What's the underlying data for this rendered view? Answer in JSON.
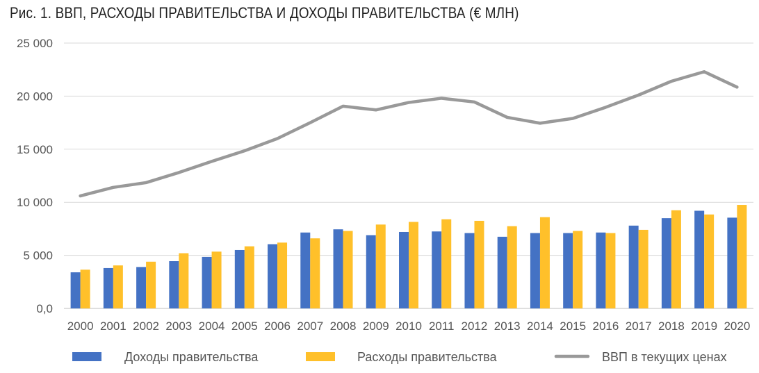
{
  "chart_data": {
    "type": "bar",
    "title": "Рис. 1. ВВП, РАСХОДЫ ПРАВИТЕЛЬСТВА И ДОХОДЫ ПРАВИТЕЛЬСТВА (€ МЛН)",
    "categories": [
      "2000",
      "2001",
      "2002",
      "2003",
      "2004",
      "2005",
      "2006",
      "2007",
      "2008",
      "2009",
      "2010",
      "2011",
      "2012",
      "2013",
      "2014",
      "2015",
      "2016",
      "2017",
      "2018",
      "2019",
      "2020"
    ],
    "y_ticks": [
      {
        "value": 0,
        "label": "0,0"
      },
      {
        "value": 5000,
        "label": "5 000"
      },
      {
        "value": 10000,
        "label": "10 000"
      },
      {
        "value": 15000,
        "label": "15 000"
      },
      {
        "value": 20000,
        "label": "20 000"
      },
      {
        "value": 25000,
        "label": "25 000"
      }
    ],
    "ylim": [
      0,
      25000
    ],
    "grid": true,
    "legend_position": "bottom",
    "series": [
      {
        "name": "Доходы правительства",
        "kind": "bar",
        "color": "#4472C4",
        "values": [
          3400,
          3800,
          3900,
          4450,
          4850,
          5500,
          6050,
          7150,
          7450,
          6900,
          7200,
          7250,
          7100,
          6750,
          7100,
          7100,
          7150,
          7800,
          8500,
          9200,
          8550
        ]
      },
      {
        "name": "Расходы правительства",
        "kind": "bar",
        "color": "#FFC02A",
        "values": [
          3650,
          4050,
          4400,
          5200,
          5350,
          5850,
          6200,
          6600,
          7300,
          7900,
          8150,
          8400,
          8250,
          7750,
          8600,
          7300,
          7100,
          7400,
          9250,
          8850,
          9750
        ]
      },
      {
        "name": "ВВП в текущих ценах",
        "kind": "line",
        "color": "#999999",
        "values": [
          10600,
          11400,
          11850,
          12800,
          13850,
          14850,
          16000,
          17500,
          19050,
          18700,
          19400,
          19800,
          19450,
          18000,
          17450,
          17900,
          18950,
          20100,
          21400,
          22300,
          20850
        ]
      }
    ]
  }
}
